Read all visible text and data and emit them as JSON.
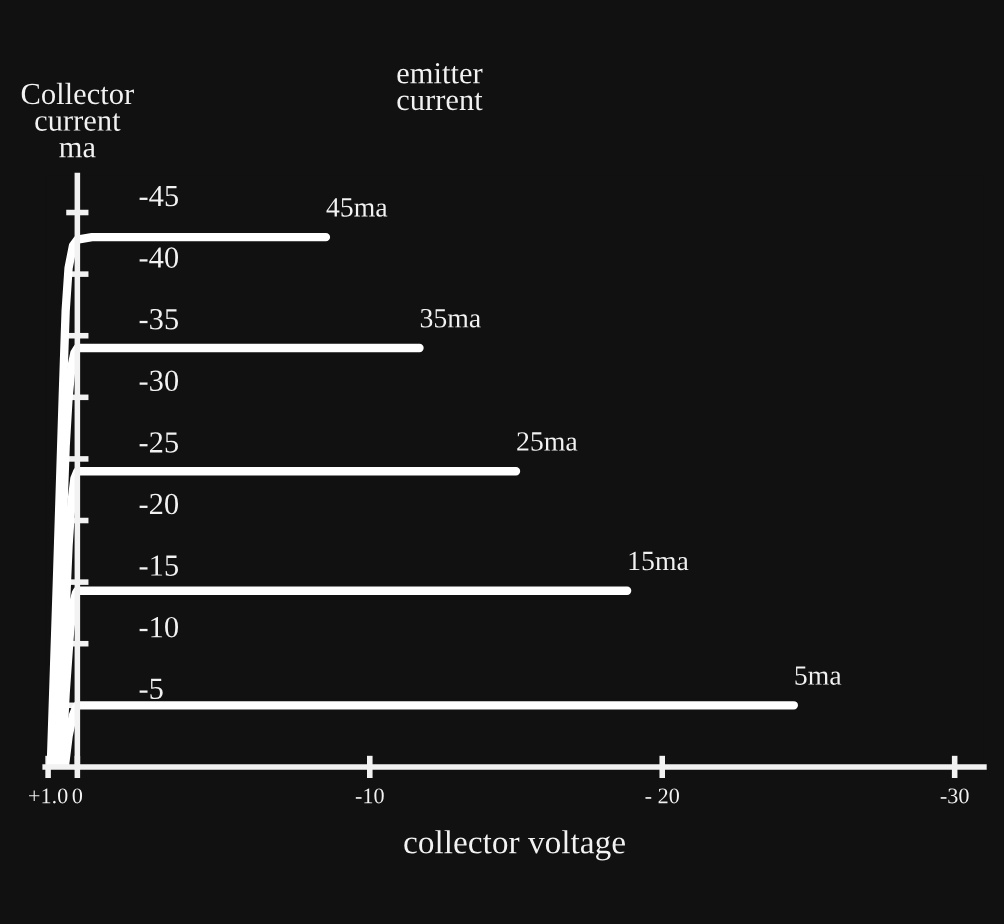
{
  "chart_data": {
    "type": "line",
    "ylabel": "Collector\ncurrent\nma",
    "legend_title": "emitter\ncurrent",
    "xlabel": "collector voltage",
    "xlim": [
      1.1,
      -31
    ],
    "xticks": [
      {
        "value": 1.0,
        "label": "+1.0"
      },
      0,
      -10,
      {
        "value": -20,
        "label": "- 20"
      },
      -30
    ],
    "ylim": [
      0,
      -48
    ],
    "yticks": [
      -45,
      -40,
      -35,
      -30,
      -25,
      -20,
      -15,
      -10,
      -5
    ],
    "grid": false,
    "legend": false,
    "marker": "none",
    "line_style": "solid",
    "series": [
      {
        "name": "45ma",
        "color": "#ffffff",
        "x": [
          0.91,
          0.7,
          0.5,
          0.4,
          0.3,
          0.15,
          0,
          -0.5,
          -8.5
        ],
        "values": [
          0,
          -15,
          -30,
          -37,
          -40.5,
          -42.3,
          -42.8,
          -43,
          -43
        ]
      },
      {
        "name": "35ma",
        "color": "#ffffff",
        "x": [
          0.79,
          0.6,
          0.4,
          0.3,
          0.2,
          0.1,
          0,
          -0.5,
          -11.7
        ],
        "values": [
          0,
          -13,
          -26,
          -30,
          -32.5,
          -33.6,
          -34,
          -34,
          -34
        ]
      },
      {
        "name": "25ma",
        "color": "#ffffff",
        "x": [
          0.62,
          0.45,
          0.3,
          0.2,
          0.1,
          0,
          -0.5,
          -15
        ],
        "values": [
          0,
          -10,
          -18,
          -21.5,
          -23.4,
          -24,
          -24,
          -24
        ]
      },
      {
        "name": "15ma",
        "color": "#ffffff",
        "x": [
          0.53,
          0.4,
          0.25,
          0.15,
          0.05,
          0,
          -0.5,
          -18.8
        ],
        "values": [
          0,
          -6,
          -11,
          -13.2,
          -14.1,
          -14.3,
          -14.3,
          -14.3
        ]
      },
      {
        "name": "5ma",
        "color": "#ffffff",
        "x": [
          0.43,
          0.3,
          0.15,
          0.05,
          0,
          -0.5,
          -24.5
        ],
        "values": [
          0,
          -2.5,
          -4.2,
          -4.8,
          -5,
          -5,
          -5
        ]
      }
    ]
  }
}
